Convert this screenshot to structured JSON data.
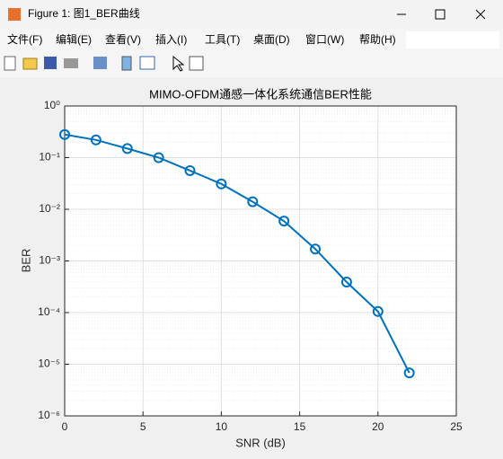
{
  "window": {
    "title": "Figure 1: 图1_BER曲线",
    "menus": [
      "文件(F)",
      "编辑(E)",
      "查看(V)",
      "插入(I)",
      "工具(T)",
      "桌面(D)",
      "窗口(W)",
      "帮助(H)"
    ]
  },
  "chart_data": {
    "type": "line",
    "title": "MIMO-OFDM通感一体化系统通信BER性能",
    "x_label": "SNR (dB)",
    "y_label": "BER",
    "x": [
      0,
      2,
      4,
      6,
      8,
      10,
      12,
      14,
      16,
      18,
      20,
      22
    ],
    "values": [
      0.28,
      0.22,
      0.15,
      0.1,
      0.056,
      0.031,
      0.014,
      0.0059,
      0.0017,
      0.00039,
      0.000105,
      6.8e-06
    ],
    "color": "#0072bd",
    "marker": "circle",
    "y_scale": "log",
    "grid": true,
    "xlim": [
      0,
      25
    ],
    "xticks": [
      0,
      5,
      10,
      15,
      20,
      25
    ],
    "ylim": [
      1e-06,
      1
    ],
    "yticks": [
      {
        "value": 1e-06,
        "label": "10⁻⁶"
      },
      {
        "value": 1e-05,
        "label": "10⁻⁵"
      },
      {
        "value": 0.0001,
        "label": "10⁻⁴"
      },
      {
        "value": 0.001,
        "label": "10⁻³"
      },
      {
        "value": 0.01,
        "label": "10⁻²"
      },
      {
        "value": 0.1,
        "label": "10⁻¹"
      },
      {
        "value": 1,
        "label": "10⁰"
      }
    ]
  }
}
